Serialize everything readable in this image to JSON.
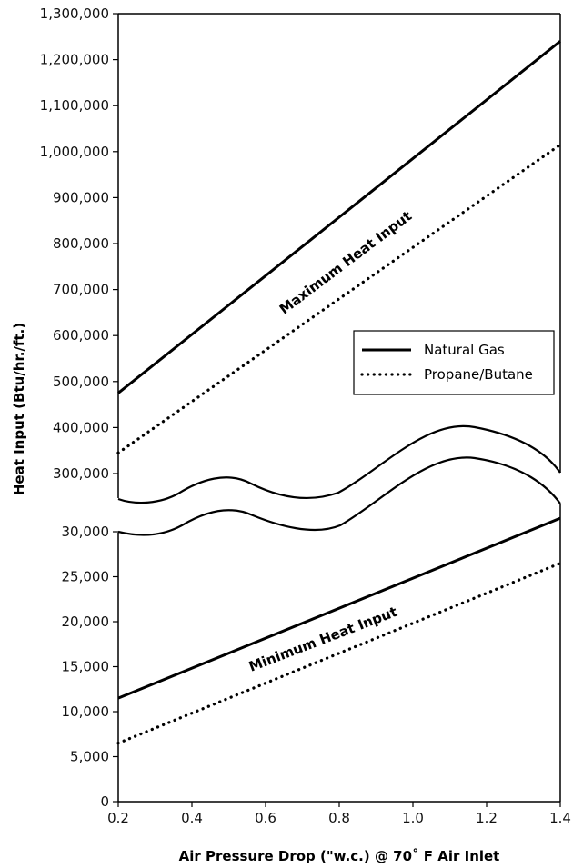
{
  "chart_data": {
    "type": "line",
    "xlabel": "Air Pressure Drop (\"w.c.) @ 70˚ F Air Inlet",
    "ylabel": "Heat Input (Btu/hr./ft.)",
    "xlim": [
      0.2,
      1.4
    ],
    "x_ticks": [
      "0.2",
      "0.4",
      "0.6",
      "0.8",
      "1.0",
      "1.2",
      "1.4"
    ],
    "upper_panel": {
      "ylim": [
        300000,
        1300000
      ],
      "y_ticks": [
        "300,000",
        "400,000",
        "500,000",
        "600,000",
        "700,000",
        "800,000",
        "900,000",
        "1,000,000",
        "1,100,000",
        "1,200,000",
        "1,300,000"
      ],
      "annotation": "Maximum Heat Input",
      "series": [
        {
          "name": "Natural Gas",
          "style": "solid",
          "x": [
            0.2,
            1.4
          ],
          "y": [
            475000,
            1240000
          ]
        },
        {
          "name": "Propane/Butane",
          "style": "dotted",
          "x": [
            0.2,
            1.4
          ],
          "y": [
            345000,
            1015000
          ]
        }
      ]
    },
    "lower_panel": {
      "ylim": [
        0,
        30000
      ],
      "y_ticks": [
        "0",
        "5,000",
        "10,000",
        "15,000",
        "20,000",
        "25,000",
        "30,000"
      ],
      "annotation": "Minimum Heat Input",
      "series": [
        {
          "name": "Natural Gas",
          "style": "solid",
          "x": [
            0.2,
            1.4
          ],
          "y": [
            11500,
            31500
          ]
        },
        {
          "name": "Propane/Butane",
          "style": "dotted",
          "x": [
            0.2,
            1.4
          ],
          "y": [
            6500,
            26500
          ]
        }
      ]
    },
    "legend": {
      "placement": "right",
      "entries": [
        {
          "label": "Natural Gas",
          "style": "solid"
        },
        {
          "label": "Propane/Butane",
          "style": "dotted"
        }
      ]
    },
    "axis_break": true,
    "grid": false
  }
}
